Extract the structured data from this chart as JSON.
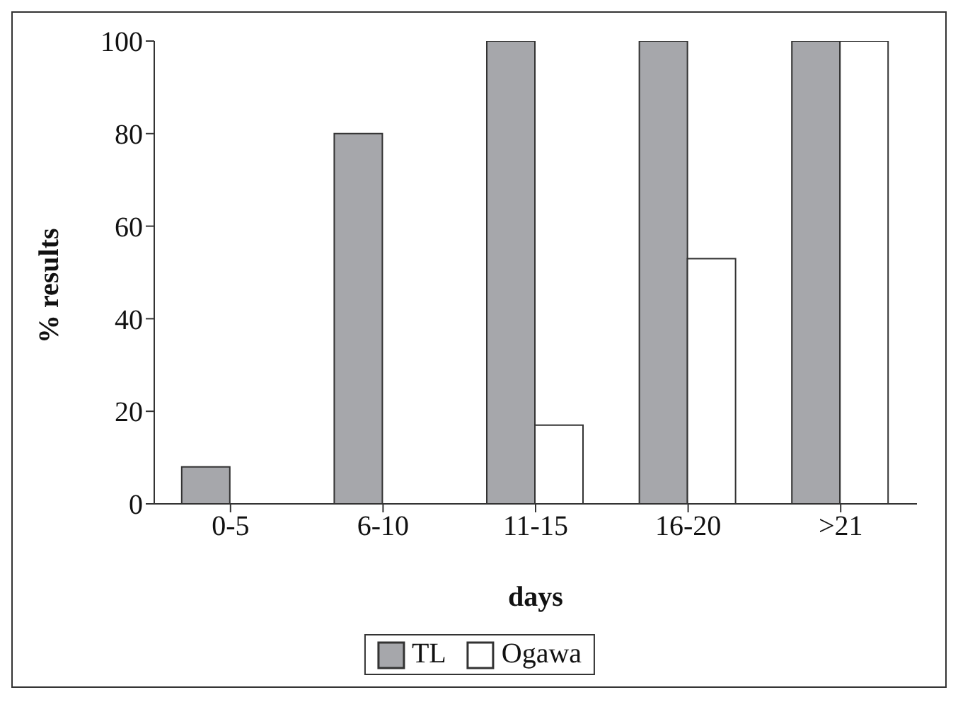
{
  "chart_data": {
    "type": "bar",
    "xlabel": "days",
    "ylabel": "% results",
    "categories": [
      "0-5",
      "6-10",
      "11-15",
      "16-20",
      ">21"
    ],
    "series": [
      {
        "name": "TL",
        "color": "#a6a7ab",
        "values": [
          8,
          80,
          100,
          100,
          100
        ]
      },
      {
        "name": "Ogawa",
        "color": "#ffffff",
        "values": [
          0,
          0,
          17,
          53,
          100
        ]
      }
    ],
    "ylim": [
      0,
      100
    ],
    "yticks": [
      0,
      20,
      40,
      60,
      80,
      100
    ],
    "grid": false,
    "legend": "bottom"
  }
}
